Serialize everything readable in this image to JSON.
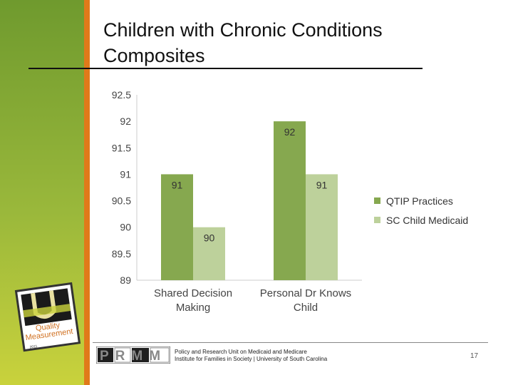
{
  "slide": {
    "title_line1": "Children with Chronic Conditions",
    "title_line2": "Composites",
    "page_number": "17"
  },
  "footer": {
    "logo_text": "PRMM",
    "line1": "Policy and Research Unit on Medicaid and Medicare",
    "line2": "Institute for Families in Society | University of South Carolina"
  },
  "badge": {
    "text1": "Quality",
    "text2": "Measurement",
    "year": "2011"
  },
  "colors": {
    "sidebar": "#7ea52f",
    "accent": "#e07a1a",
    "series1": "#86a84f",
    "series2": "#bdd19b"
  },
  "chart_data": {
    "type": "bar",
    "title": "",
    "xlabel": "",
    "ylabel": "",
    "categories": [
      {
        "line1": "Shared Decision",
        "line2": "Making"
      },
      {
        "line1": "Personal Dr Knows",
        "line2": "Child"
      }
    ],
    "series": [
      {
        "name": "QTIP Practices",
        "values": [
          91,
          92
        ],
        "labels": [
          "91",
          "92"
        ],
        "color": "#86a84f"
      },
      {
        "name": "SC Child Medicaid",
        "values": [
          90,
          91
        ],
        "labels": [
          "90",
          "91"
        ],
        "color": "#bdd19b"
      }
    ],
    "ylim": [
      89,
      92.5
    ],
    "yticks": [
      {
        "value": 92.5,
        "label": "92.5"
      },
      {
        "value": 92,
        "label": "92"
      },
      {
        "value": 91.5,
        "label": "91.5"
      },
      {
        "value": 91,
        "label": "91"
      },
      {
        "value": 90.5,
        "label": "90.5"
      },
      {
        "value": 90,
        "label": "90"
      },
      {
        "value": 89.5,
        "label": "89.5"
      },
      {
        "value": 89,
        "label": "89"
      }
    ],
    "legend_position": "right"
  }
}
